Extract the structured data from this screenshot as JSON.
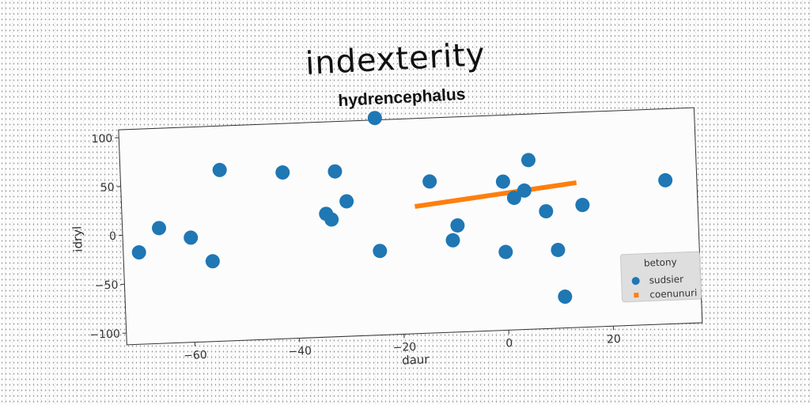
{
  "chart_data": {
    "type": "scatter",
    "title": "indexterity",
    "subtitle": "hydrencephalus",
    "xlabel": "daur",
    "ylabel": "idryl",
    "xlim": [
      -73,
      37
    ],
    "ylim": [
      -112,
      108
    ],
    "xticks": [
      -60,
      -40,
      -20,
      0,
      20
    ],
    "yticks": [
      -100,
      -50,
      0,
      50,
      100
    ],
    "grid": false,
    "legend": {
      "title": "betony",
      "position": "bottom-right"
    },
    "series": [
      {
        "name": "sudsier",
        "kind": "scatter",
        "color": "#1f77b4",
        "points": [
          {
            "x": -70,
            "y": -18
          },
          {
            "x": -66,
            "y": 6
          },
          {
            "x": -60,
            "y": -5
          },
          {
            "x": -56,
            "y": -30
          },
          {
            "x": -54,
            "y": 63
          },
          {
            "x": -42,
            "y": 58
          },
          {
            "x": -34,
            "y": 14
          },
          {
            "x": -33,
            "y": 8
          },
          {
            "x": -32,
            "y": 57
          },
          {
            "x": -30,
            "y": 26
          },
          {
            "x": -24,
            "y": 110
          },
          {
            "x": -24,
            "y": -26
          },
          {
            "x": -14,
            "y": 43
          },
          {
            "x": -10,
            "y": -18
          },
          {
            "x": -9,
            "y": -3
          },
          {
            "x": 0,
            "y": -32
          },
          {
            "x": 0,
            "y": 40
          },
          {
            "x": 2,
            "y": 23
          },
          {
            "x": 4,
            "y": 30
          },
          {
            "x": 5,
            "y": 61
          },
          {
            "x": 8,
            "y": 8
          },
          {
            "x": 10,
            "y": -32
          },
          {
            "x": 11,
            "y": -80
          },
          {
            "x": 15,
            "y": 13
          },
          {
            "x": 31,
            "y": 35
          }
        ]
      },
      {
        "name": "coenunuri",
        "kind": "line",
        "color": "#ff7f0e",
        "points": [
          {
            "x": -17,
            "y": 18
          },
          {
            "x": 14,
            "y": 36
          }
        ]
      }
    ]
  }
}
